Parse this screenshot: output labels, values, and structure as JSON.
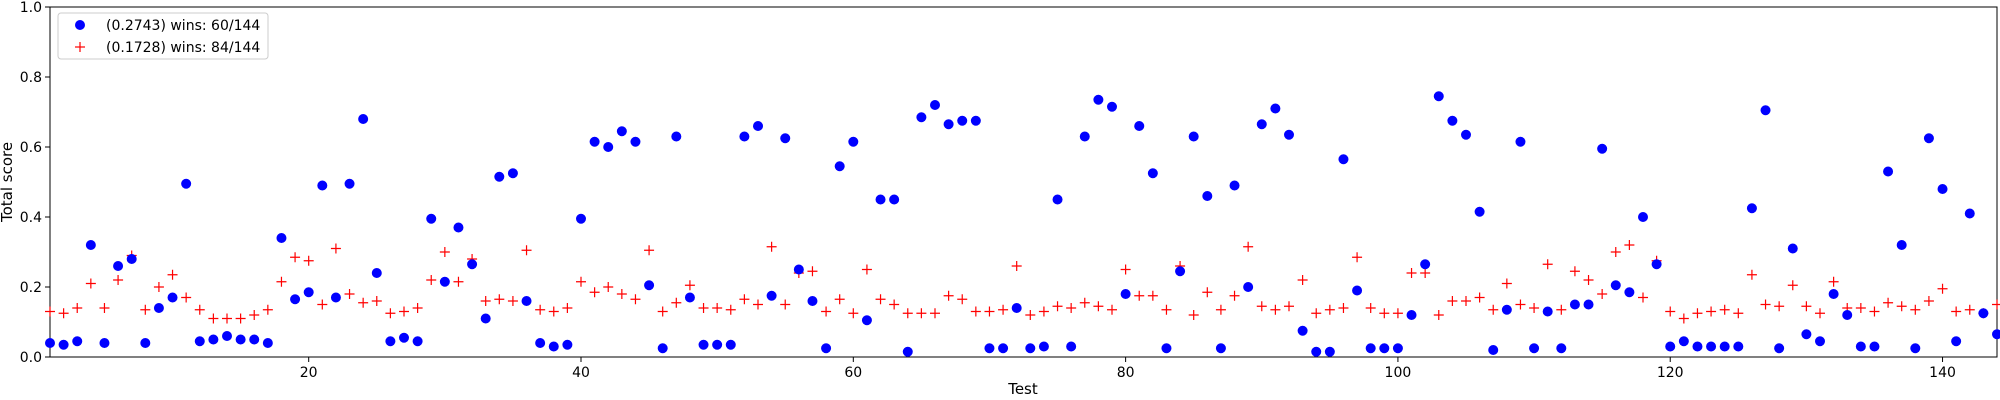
{
  "chart_data": {
    "type": "scatter",
    "title": "",
    "xlabel": "Test",
    "ylabel": "Total score",
    "xlim": [
      1,
      144
    ],
    "ylim": [
      0,
      1.0
    ],
    "xticks": [
      20,
      40,
      60,
      80,
      100,
      120,
      140
    ],
    "yticks": [
      0.0,
      0.2,
      0.4,
      0.6,
      0.8,
      1.0
    ],
    "xtick_labels": [
      "20",
      "40",
      "60",
      "80",
      "100",
      "120",
      "140"
    ],
    "ytick_labels": [
      "0.0",
      "0.2",
      "0.4",
      "0.6",
      "0.8",
      "1.0"
    ],
    "grid": false,
    "legend_position": "top-left",
    "x": [
      1,
      2,
      3,
      4,
      5,
      6,
      7,
      8,
      9,
      10,
      11,
      12,
      13,
      14,
      15,
      16,
      17,
      18,
      19,
      20,
      21,
      22,
      23,
      24,
      25,
      26,
      27,
      28,
      29,
      30,
      31,
      32,
      33,
      34,
      35,
      36,
      37,
      38,
      39,
      40,
      41,
      42,
      43,
      44,
      45,
      46,
      47,
      48,
      49,
      50,
      51,
      52,
      53,
      54,
      55,
      56,
      57,
      58,
      59,
      60,
      61,
      62,
      63,
      64,
      65,
      66,
      67,
      68,
      69,
      70,
      71,
      72,
      73,
      74,
      75,
      76,
      77,
      78,
      79,
      80,
      81,
      82,
      83,
      84,
      85,
      86,
      87,
      88,
      89,
      90,
      91,
      92,
      93,
      94,
      95,
      96,
      97,
      98,
      99,
      100,
      101,
      102,
      103,
      104,
      105,
      106,
      107,
      108,
      109,
      110,
      111,
      112,
      113,
      114,
      115,
      116,
      117,
      118,
      119,
      120,
      121,
      122,
      123,
      124,
      125,
      126,
      127,
      128,
      129,
      130,
      131,
      132,
      133,
      134,
      135,
      136,
      137,
      138,
      139,
      140,
      141,
      142,
      143,
      144
    ],
    "series": [
      {
        "name": "(0.2743) wins: 60/144",
        "marker": "circle",
        "color": "#0000ff",
        "values": [
          0.04,
          0.035,
          0.045,
          0.32,
          0.04,
          0.26,
          0.28,
          0.04,
          0.14,
          0.17,
          0.495,
          0.045,
          0.05,
          0.06,
          0.05,
          0.05,
          0.04,
          0.34,
          0.165,
          0.185,
          0.49,
          0.17,
          0.495,
          0.68,
          0.24,
          0.045,
          0.055,
          0.045,
          0.395,
          0.215,
          0.37,
          0.265,
          0.11,
          0.515,
          0.525,
          0.16,
          0.04,
          0.03,
          0.035,
          0.395,
          0.615,
          0.6,
          0.645,
          0.615,
          0.205,
          0.025,
          0.63,
          0.17,
          0.035,
          0.035,
          0.035,
          0.63,
          0.66,
          0.175,
          0.625,
          0.25,
          0.16,
          0.025,
          0.545,
          0.615,
          0.105,
          0.45,
          0.45,
          0.015,
          0.685,
          0.72,
          0.665,
          0.675,
          0.675,
          0.025,
          0.025,
          0.14,
          0.025,
          0.03,
          0.45,
          0.03,
          0.63,
          0.735,
          0.715,
          0.18,
          0.66,
          0.525,
          0.025,
          0.245,
          0.63,
          0.46,
          0.025,
          0.49,
          0.2,
          0.665,
          0.71,
          0.635,
          0.075,
          0.015,
          0.015,
          0.565,
          0.19,
          0.025,
          0.025,
          0.025,
          0.12,
          0.265,
          0.745,
          0.675,
          0.635,
          0.415,
          0.02,
          0.135,
          0.615,
          0.025,
          0.13,
          0.025,
          0.15,
          0.15,
          0.595,
          0.205,
          0.185,
          0.4,
          0.265,
          0.03,
          0.045,
          0.03,
          0.03,
          0.03,
          0.03,
          0.425,
          0.705,
          0.025,
          0.31,
          0.065,
          0.045,
          0.18,
          0.12,
          0.03,
          0.03,
          0.53,
          0.32,
          0.025,
          0.625,
          0.48,
          0.045,
          0.41,
          0.125,
          0.065
        ]
      },
      {
        "name": "(0.1728) wins: 84/144",
        "marker": "plus",
        "color": "#ff0000",
        "values": [
          0.13,
          0.125,
          0.14,
          0.21,
          0.14,
          0.22,
          0.29,
          0.135,
          0.2,
          0.235,
          0.17,
          0.135,
          0.11,
          0.11,
          0.11,
          0.12,
          0.135,
          0.215,
          0.285,
          0.275,
          0.15,
          0.31,
          0.18,
          0.155,
          0.16,
          0.125,
          0.13,
          0.14,
          0.22,
          0.3,
          0.215,
          0.28,
          0.16,
          0.165,
          0.16,
          0.305,
          0.135,
          0.13,
          0.14,
          0.215,
          0.185,
          0.2,
          0.18,
          0.165,
          0.305,
          0.13,
          0.155,
          0.205,
          0.14,
          0.14,
          0.135,
          0.165,
          0.15,
          0.315,
          0.15,
          0.24,
          0.245,
          0.13,
          0.165,
          0.125,
          0.25,
          0.165,
          0.15,
          0.125,
          0.125,
          0.125,
          0.175,
          0.165,
          0.13,
          0.13,
          0.135,
          0.26,
          0.12,
          0.13,
          0.145,
          0.14,
          0.155,
          0.145,
          0.135,
          0.25,
          0.175,
          0.175,
          0.135,
          0.26,
          0.12,
          0.185,
          0.135,
          0.175,
          0.315,
          0.145,
          0.135,
          0.145,
          0.22,
          0.125,
          0.135,
          0.14,
          0.285,
          0.14,
          0.125,
          0.125,
          0.24,
          0.24,
          0.12,
          0.16,
          0.16,
          0.17,
          0.135,
          0.21,
          0.15,
          0.14,
          0.265,
          0.135,
          0.245,
          0.22,
          0.18,
          0.3,
          0.32,
          0.17,
          0.275,
          0.13,
          0.11,
          0.125,
          0.13,
          0.135,
          0.125,
          0.235,
          0.15,
          0.145,
          0.205,
          0.145,
          0.125,
          0.215,
          0.14,
          0.14,
          0.13,
          0.155,
          0.145,
          0.135,
          0.16,
          0.195,
          0.13,
          0.135,
          0.125,
          0.15
        ]
      }
    ]
  }
}
